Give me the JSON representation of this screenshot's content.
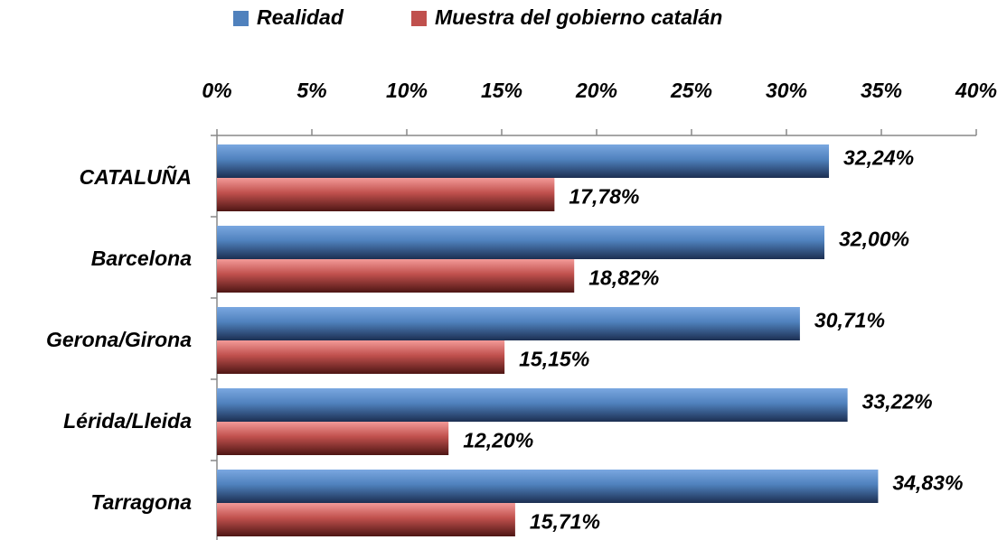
{
  "chart_data": {
    "type": "bar",
    "orientation": "horizontal",
    "categories": [
      "CATALUÑA",
      "Barcelona",
      "Gerona/Girona",
      "Lérida/Lleida",
      "Tarragona"
    ],
    "series": [
      {
        "name": "Realidad",
        "color": "#4f81bd",
        "values": [
          32.24,
          32.0,
          30.71,
          33.22,
          34.83
        ],
        "value_labels": [
          "32,24%",
          "32,00%",
          "30,71%",
          "33,22%",
          "34,83%"
        ]
      },
      {
        "name": "Muestra del gobierno catalán",
        "color": "#c0504d",
        "values": [
          17.78,
          18.82,
          15.15,
          12.2,
          15.71
        ],
        "value_labels": [
          "17,78%",
          "18,82%",
          "15,15%",
          "12,20%",
          "15,71%"
        ]
      }
    ],
    "xlim": [
      0,
      40
    ],
    "xticks": [
      {
        "value": 0,
        "label": "0%"
      },
      {
        "value": 5,
        "label": "5%"
      },
      {
        "value": 10,
        "label": "10%"
      },
      {
        "value": 15,
        "label": "15%"
      },
      {
        "value": 20,
        "label": "20%"
      },
      {
        "value": 25,
        "label": "25%"
      },
      {
        "value": 30,
        "label": "30%"
      },
      {
        "value": 35,
        "label": "35%"
      },
      {
        "value": 40,
        "label": "40%"
      }
    ],
    "legend": "top",
    "grid": false
  }
}
